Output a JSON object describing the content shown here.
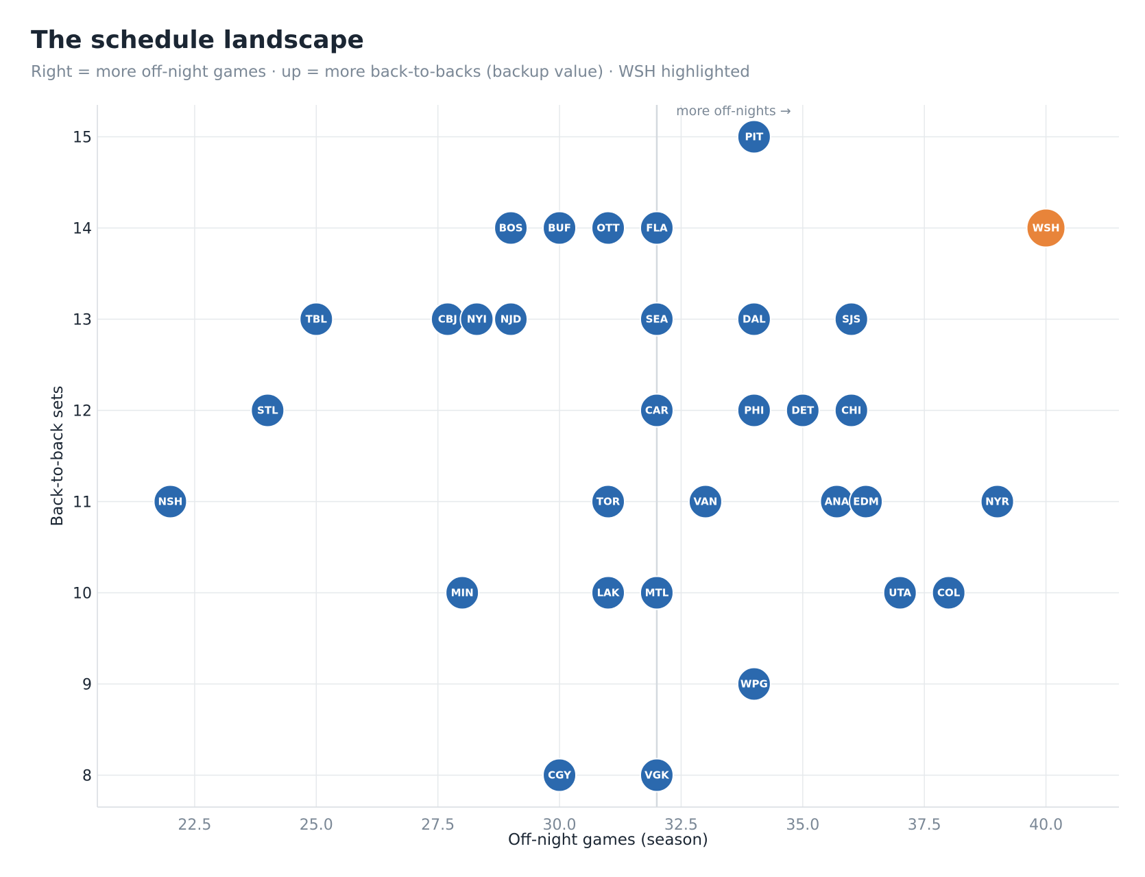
{
  "chart_data": {
    "type": "scatter",
    "title": "The schedule landscape",
    "subtitle": "Right = more off-night games · up = more back-to-backs (backup value) · WSH highlighted",
    "xlabel": "Off-night games (season)",
    "ylabel": "Back-to-back sets",
    "xlim": [
      20.5,
      41.5
    ],
    "ylim": [
      7.65,
      15.35
    ],
    "xticks": [
      "22.5",
      "25.0",
      "27.5",
      "30.0",
      "32.5",
      "35.0",
      "37.5",
      "40.0"
    ],
    "yticks": [
      "8",
      "9",
      "10",
      "11",
      "12",
      "13",
      "14",
      "15"
    ],
    "grid": true,
    "reference_x": 32,
    "annotation": "more off-nights →",
    "highlight": "WSH",
    "colors": {
      "default": "#2b69ae",
      "highlight": "#e8843a"
    },
    "points": [
      {
        "team": "PIT",
        "x": 34,
        "y": 15
      },
      {
        "team": "BOS",
        "x": 29,
        "y": 14
      },
      {
        "team": "BUF",
        "x": 30,
        "y": 14
      },
      {
        "team": "OTT",
        "x": 31,
        "y": 14
      },
      {
        "team": "FLA",
        "x": 32,
        "y": 14
      },
      {
        "team": "WSH",
        "x": 40,
        "y": 14
      },
      {
        "team": "TBL",
        "x": 25,
        "y": 13
      },
      {
        "team": "CBJ",
        "x": 27.7,
        "y": 13
      },
      {
        "team": "NYI",
        "x": 28.3,
        "y": 13
      },
      {
        "team": "NJD",
        "x": 29,
        "y": 13
      },
      {
        "team": "SEA",
        "x": 32,
        "y": 13
      },
      {
        "team": "DAL",
        "x": 34,
        "y": 13
      },
      {
        "team": "SJS",
        "x": 36,
        "y": 13
      },
      {
        "team": "STL",
        "x": 24,
        "y": 12
      },
      {
        "team": "CAR",
        "x": 32,
        "y": 12
      },
      {
        "team": "PHI",
        "x": 34,
        "y": 12
      },
      {
        "team": "DET",
        "x": 35,
        "y": 12
      },
      {
        "team": "CHI",
        "x": 36,
        "y": 12
      },
      {
        "team": "NSH",
        "x": 22,
        "y": 11
      },
      {
        "team": "TOR",
        "x": 31,
        "y": 11
      },
      {
        "team": "VAN",
        "x": 33,
        "y": 11
      },
      {
        "team": "ANA",
        "x": 35.7,
        "y": 11
      },
      {
        "team": "EDM",
        "x": 36.3,
        "y": 11
      },
      {
        "team": "NYR",
        "x": 39,
        "y": 11
      },
      {
        "team": "MIN",
        "x": 28,
        "y": 10
      },
      {
        "team": "LAK",
        "x": 31,
        "y": 10
      },
      {
        "team": "MTL",
        "x": 32,
        "y": 10
      },
      {
        "team": "UTA",
        "x": 37,
        "y": 10
      },
      {
        "team": "COL",
        "x": 38,
        "y": 10
      },
      {
        "team": "WPG",
        "x": 34,
        "y": 9
      },
      {
        "team": "CGY",
        "x": 30,
        "y": 8
      },
      {
        "team": "VGK",
        "x": 32,
        "y": 8
      }
    ]
  }
}
